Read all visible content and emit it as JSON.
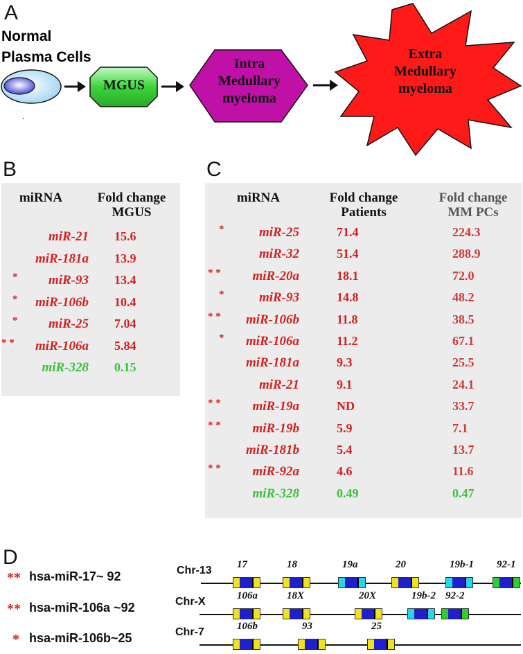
{
  "panel_a": {
    "letter": "A",
    "normal_label_1": "Normal",
    "normal_label_2": "Plasma Cells",
    "mgus": "MGUS",
    "intra_1": "Intra",
    "intra_2": "Medullary",
    "intra_3": "myeloma",
    "extra_1": "Extra",
    "extra_2": "Medullary",
    "extra_3": "myeloma",
    "colors": {
      "mgus": "#3bd63b",
      "intra": "#c010a8",
      "extra": "#ff1a1a",
      "cell": "#bfe4f7",
      "nucleus": "#3a3ad0"
    }
  },
  "panel_b": {
    "letter": "B",
    "col1": "miRNA",
    "col2_1": "Fold change",
    "col2_2": "MGUS",
    "rows": [
      {
        "star": "",
        "name": "miR-21",
        "value": "15.6"
      },
      {
        "star": "",
        "name": "miR-181a",
        "value": "13.9"
      },
      {
        "star": "*",
        "name": "miR-93",
        "value": "13.4"
      },
      {
        "star": "*",
        "name": "miR-106b",
        "value": "10.4"
      },
      {
        "star": "*",
        "name": "miR-25",
        "value": "7.04"
      },
      {
        "star": "* *",
        "name": "miR-106a",
        "value": "5.84"
      },
      {
        "star": "",
        "name": "miR-328",
        "value": "0.15"
      }
    ]
  },
  "panel_c": {
    "letter": "C",
    "col1": "miRNA",
    "col2_1": "Fold change",
    "col2_2": "Patients",
    "col3_1": "Fold change",
    "col3_2": "MM PCs",
    "rows": [
      {
        "star": "*",
        "name": "miR-25",
        "patients": "71.4",
        "mmpcs": "224.3"
      },
      {
        "star": "",
        "name": "miR-32",
        "patients": "51.4",
        "mmpcs": "288.9"
      },
      {
        "star": "* *",
        "name": "miR-20a",
        "patients": "18.1",
        "mmpcs": "72.0"
      },
      {
        "star": "*",
        "name": "miR-93",
        "patients": "14.8",
        "mmpcs": "48.2"
      },
      {
        "star": "* *",
        "name": "miR-106b",
        "patients": "11.8",
        "mmpcs": "38.5"
      },
      {
        "star": "*",
        "name": "miR-106a",
        "patients": "11.2",
        "mmpcs": "67.1"
      },
      {
        "star": "",
        "name": "miR-181a",
        "patients": "9.3",
        "mmpcs": "25.5"
      },
      {
        "star": "",
        "name": "miR-21",
        "patients": "9.1",
        "mmpcs": "24.1"
      },
      {
        "star": "* *",
        "name": "miR-19a",
        "patients": "ND",
        "mmpcs": "33.7"
      },
      {
        "star": "* *",
        "name": "miR-19b",
        "patients": "5.9",
        "mmpcs": "7.1"
      },
      {
        "star": "",
        "name": "miR-181b",
        "patients": "5.4",
        "mmpcs": "13.7"
      },
      {
        "star": "* *",
        "name": "miR-92a",
        "patients": "4.6",
        "mmpcs": "11.6"
      },
      {
        "star": "",
        "name": "miR-328",
        "patients": "0.49",
        "mmpcs": "0.47"
      }
    ]
  },
  "panel_d": {
    "letter": "D",
    "clusters": [
      {
        "star": "**",
        "name": "hsa-miR-17~ 92",
        "chr": "Chr-13",
        "mirs": [
          "17",
          "18",
          "19a",
          "20",
          "19b-1",
          "92-1"
        ]
      },
      {
        "star": "**",
        "name": "hsa-miR-106a  ~92",
        "chr": "Chr-X",
        "mirs": [
          "106a",
          "18X",
          "20X",
          "19b-2",
          "92-2"
        ]
      },
      {
        "star": "*",
        "name": "hsa-miR-106b~25",
        "chr": "Chr-7",
        "mirs": [
          "106b",
          "93",
          "25"
        ]
      }
    ]
  }
}
